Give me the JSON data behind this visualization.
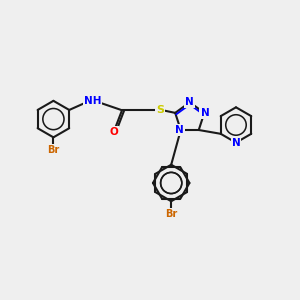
{
  "bg_color": "#efefef",
  "bond_color": "#1a1a1a",
  "N_color": "#0000ff",
  "O_color": "#ff0000",
  "S_color": "#cccc00",
  "Br_color": "#cc6600",
  "NH_color": "#0000ff",
  "line_width": 1.5,
  "figsize": [
    3.0,
    3.0
  ],
  "dpi": 100,
  "xlim": [
    0,
    10
  ],
  "ylim": [
    1,
    9
  ]
}
